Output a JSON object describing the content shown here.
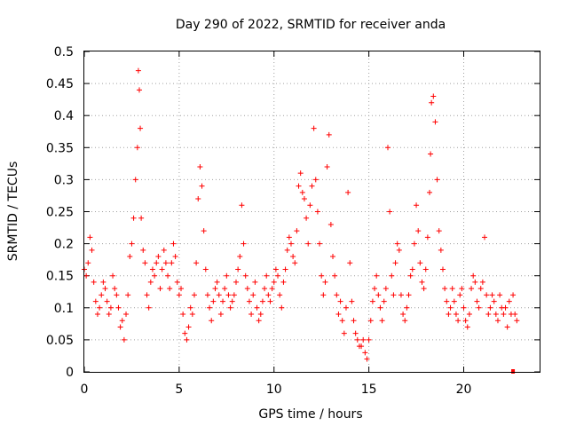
{
  "chart_data": {
    "type": "scatter",
    "title": "Day 290 of 2022, SRMTID for receiver anda",
    "xlabel": "GPS time / hours",
    "ylabel": "SRMTID / TECUs",
    "xlim": [
      0,
      24
    ],
    "ylim": [
      0,
      0.5
    ],
    "x_ticks": [
      "0",
      "5",
      "10",
      "15",
      "20"
    ],
    "y_ticks": [
      "0",
      "0.05",
      "0.1",
      "0.15",
      "0.2",
      "0.25",
      "0.3",
      "0.35",
      "0.4",
      "0.45",
      "0.5"
    ],
    "grid": true,
    "marker": "plus",
    "series": [
      {
        "name": "SRMTID",
        "color": "#ff0000",
        "x": [
          0.0,
          0.1,
          0.2,
          0.3,
          0.4,
          0.5,
          0.6,
          0.7,
          0.8,
          0.9,
          1.0,
          1.1,
          1.2,
          1.3,
          1.4,
          1.5,
          1.6,
          1.7,
          1.8,
          1.9,
          2.0,
          2.1,
          2.2,
          2.3,
          2.4,
          2.5,
          2.6,
          2.7,
          2.8,
          2.85,
          2.9,
          2.95,
          3.0,
          3.1,
          3.2,
          3.3,
          3.4,
          3.5,
          3.6,
          3.7,
          3.8,
          3.9,
          4.0,
          4.1,
          4.2,
          4.3,
          4.4,
          4.5,
          4.6,
          4.7,
          4.8,
          4.9,
          5.0,
          5.1,
          5.2,
          5.3,
          5.4,
          5.5,
          5.6,
          5.7,
          5.8,
          5.9,
          6.0,
          6.1,
          6.2,
          6.3,
          6.4,
          6.5,
          6.6,
          6.7,
          6.8,
          6.9,
          7.0,
          7.1,
          7.2,
          7.3,
          7.4,
          7.5,
          7.6,
          7.7,
          7.8,
          7.9,
          8.0,
          8.1,
          8.2,
          8.3,
          8.4,
          8.5,
          8.6,
          8.7,
          8.8,
          8.9,
          9.0,
          9.1,
          9.2,
          9.3,
          9.4,
          9.5,
          9.6,
          9.7,
          9.8,
          9.9,
          10.0,
          10.1,
          10.2,
          10.3,
          10.4,
          10.5,
          10.6,
          10.7,
          10.8,
          10.9,
          11.0,
          11.1,
          11.2,
          11.3,
          11.4,
          11.5,
          11.6,
          11.7,
          11.8,
          11.9,
          12.0,
          12.1,
          12.2,
          12.3,
          12.4,
          12.5,
          12.6,
          12.7,
          12.8,
          12.9,
          13.0,
          13.1,
          13.2,
          13.3,
          13.4,
          13.5,
          13.6,
          13.7,
          13.8,
          13.9,
          14.0,
          14.1,
          14.2,
          14.3,
          14.4,
          14.5,
          14.6,
          14.7,
          14.8,
          14.9,
          15.0,
          15.1,
          15.2,
          15.3,
          15.4,
          15.5,
          15.6,
          15.7,
          15.8,
          15.9,
          16.0,
          16.1,
          16.2,
          16.3,
          16.4,
          16.5,
          16.6,
          16.7,
          16.8,
          16.9,
          17.0,
          17.1,
          17.2,
          17.3,
          17.4,
          17.5,
          17.6,
          17.7,
          17.8,
          17.9,
          18.0,
          18.1,
          18.2,
          18.25,
          18.3,
          18.4,
          18.5,
          18.6,
          18.7,
          18.8,
          18.9,
          19.0,
          19.1,
          19.2,
          19.3,
          19.4,
          19.5,
          19.6,
          19.7,
          19.8,
          19.9,
          20.0,
          20.1,
          20.2,
          20.3,
          20.4,
          20.5,
          20.6,
          20.7,
          20.8,
          20.9,
          21.0,
          21.1,
          21.2,
          21.3,
          21.4,
          21.5,
          21.6,
          21.7,
          21.8,
          21.9,
          22.0,
          22.1,
          22.2,
          22.3,
          22.4,
          22.5,
          22.6,
          22.7,
          22.8
        ],
        "y": [
          0.16,
          0.15,
          0.17,
          0.21,
          0.19,
          0.14,
          0.11,
          0.09,
          0.1,
          0.12,
          0.14,
          0.13,
          0.11,
          0.09,
          0.1,
          0.15,
          0.13,
          0.12,
          0.1,
          0.07,
          0.08,
          0.05,
          0.09,
          0.12,
          0.18,
          0.2,
          0.24,
          0.3,
          0.35,
          0.47,
          0.44,
          0.38,
          0.24,
          0.19,
          0.17,
          0.12,
          0.1,
          0.14,
          0.16,
          0.15,
          0.17,
          0.18,
          0.13,
          0.16,
          0.19,
          0.17,
          0.15,
          0.13,
          0.17,
          0.2,
          0.18,
          0.14,
          0.12,
          0.13,
          0.09,
          0.06,
          0.05,
          0.07,
          0.1,
          0.09,
          0.12,
          0.17,
          0.27,
          0.32,
          0.29,
          0.22,
          0.16,
          0.12,
          0.1,
          0.08,
          0.11,
          0.13,
          0.14,
          0.12,
          0.09,
          0.11,
          0.13,
          0.15,
          0.12,
          0.1,
          0.11,
          0.12,
          0.14,
          0.16,
          0.18,
          0.26,
          0.2,
          0.15,
          0.13,
          0.11,
          0.09,
          0.12,
          0.14,
          0.1,
          0.08,
          0.09,
          0.11,
          0.13,
          0.15,
          0.12,
          0.11,
          0.13,
          0.14,
          0.16,
          0.15,
          0.12,
          0.1,
          0.14,
          0.16,
          0.19,
          0.21,
          0.2,
          0.18,
          0.17,
          0.22,
          0.29,
          0.31,
          0.28,
          0.27,
          0.24,
          0.2,
          0.26,
          0.29,
          0.38,
          0.3,
          0.25,
          0.2,
          0.15,
          0.12,
          0.14,
          0.32,
          0.37,
          0.23,
          0.18,
          0.15,
          0.12,
          0.09,
          0.11,
          0.08,
          0.06,
          0.1,
          0.28,
          0.17,
          0.11,
          0.08,
          0.06,
          0.05,
          0.04,
          0.04,
          0.05,
          0.03,
          0.02,
          0.05,
          0.08,
          0.11,
          0.13,
          0.15,
          0.12,
          0.1,
          0.08,
          0.11,
          0.13,
          0.35,
          0.25,
          0.15,
          0.12,
          0.17,
          0.2,
          0.19,
          0.12,
          0.09,
          0.08,
          0.1,
          0.12,
          0.15,
          0.16,
          0.2,
          0.26,
          0.22,
          0.17,
          0.14,
          0.13,
          0.16,
          0.21,
          0.28,
          0.34,
          0.42,
          0.43,
          0.39,
          0.3,
          0.22,
          0.19,
          0.16,
          0.13,
          0.11,
          0.09,
          0.1,
          0.13,
          0.11,
          0.09,
          0.08,
          0.12,
          0.13,
          0.1,
          0.08,
          0.07,
          0.09,
          0.13,
          0.15,
          0.14,
          0.11,
          0.1,
          0.13,
          0.14,
          0.21,
          0.12,
          0.09,
          0.1,
          0.12,
          0.11,
          0.09,
          0.08,
          0.12,
          0.1,
          0.09,
          0.1,
          0.07,
          0.11,
          0.09,
          0.12,
          0.09,
          0.08
        ]
      },
      {
        "name": "marker",
        "color": "#ff0000",
        "x": [
          22.6
        ],
        "y": [
          0.0
        ]
      }
    ]
  }
}
